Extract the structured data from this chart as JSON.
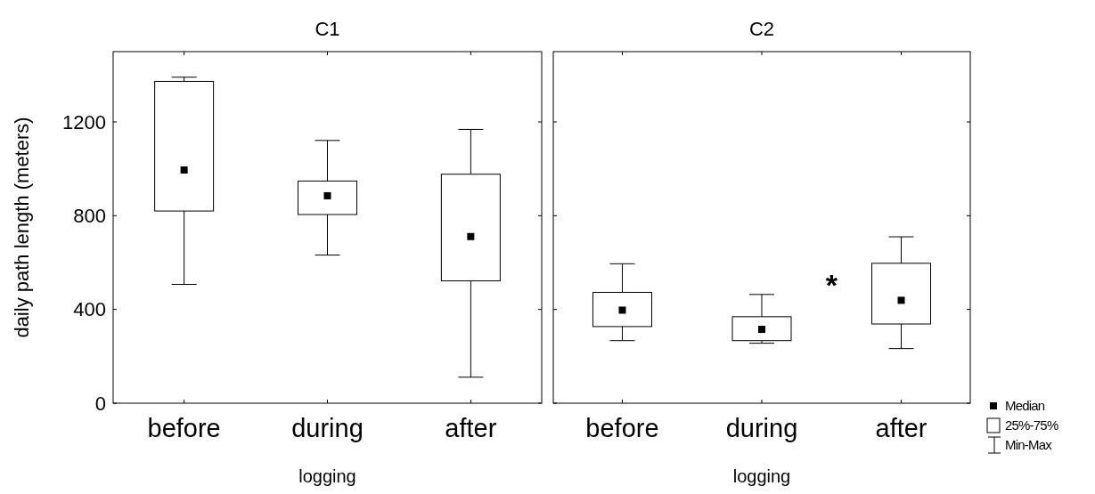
{
  "chart_data": [
    {
      "type": "box",
      "title": "C1",
      "xlabel": "logging",
      "ylabel": "daily path length (meters)",
      "categories": [
        "before",
        "during",
        "after"
      ],
      "ylim": [
        0,
        1500
      ],
      "yticks": [
        0,
        400,
        800,
        1200
      ],
      "grid": false,
      "color": "#000000",
      "boxes": [
        {
          "low": 507,
          "q1": 820,
          "median": 995,
          "q3": 1373,
          "high": 1391
        },
        {
          "low": 632,
          "q1": 805,
          "median": 885,
          "q3": 948,
          "high": 1121
        },
        {
          "low": 111,
          "q1": 522,
          "median": 711,
          "q3": 977,
          "high": 1168
        }
      ]
    },
    {
      "type": "box",
      "title": "C2",
      "xlabel": "logging",
      "categories": [
        "before",
        "during",
        "after"
      ],
      "ylim": [
        0,
        1500
      ],
      "yticks": [
        0,
        400,
        800,
        1200
      ],
      "tick_labels": "x",
      "grid": false,
      "color": "#000000",
      "boxes": [
        {
          "low": 267,
          "q1": 327,
          "median": 397,
          "q3": 473,
          "high": 595
        },
        {
          "low": 256,
          "q1": 267,
          "median": 315,
          "q3": 369,
          "high": 464
        },
        {
          "low": 233,
          "q1": 338,
          "median": 439,
          "q3": 597,
          "high": 710
        }
      ],
      "annotations": [
        "*",
        "Median",
        "25%-75%",
        "Min-Max"
      ]
    }
  ]
}
